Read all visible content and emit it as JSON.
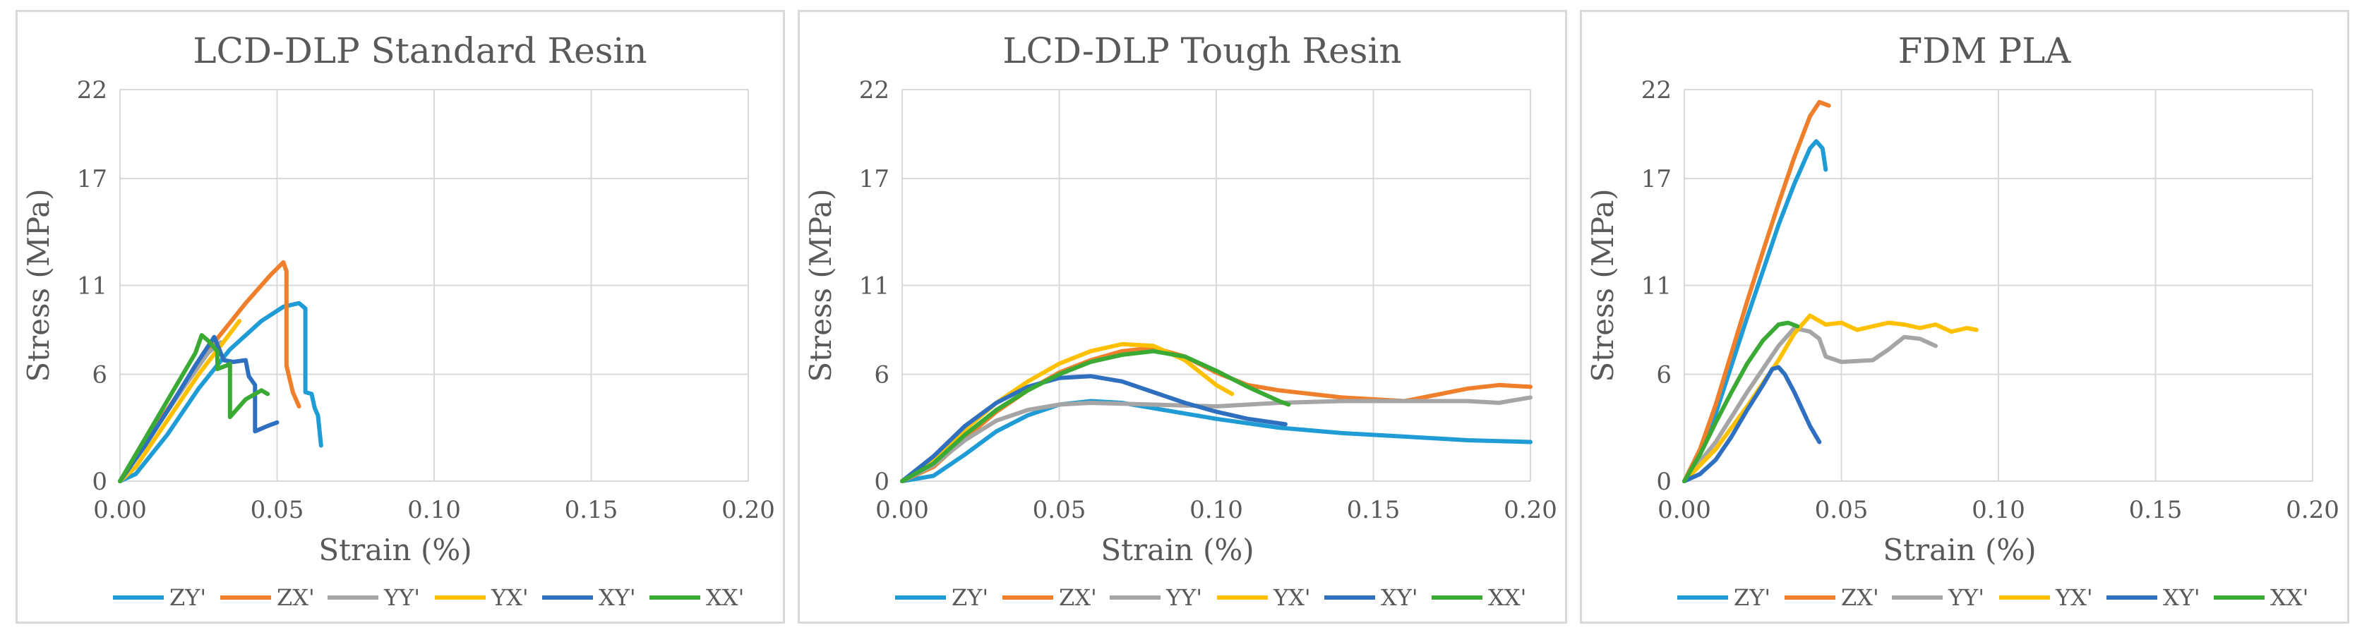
{
  "chart_data": [
    {
      "type": "line",
      "title": "LCD-DLP Standard Resin",
      "xlabel": "Strain (%)",
      "ylabel": "Stress (MPa)",
      "xlim": [
        0,
        0.2
      ],
      "ylim": [
        0,
        22
      ],
      "x_ticks": [
        "0.00",
        "0.05",
        "0.10",
        "0.15",
        "0.20"
      ],
      "y_ticks": [
        "0",
        "6",
        "11",
        "17",
        "22"
      ],
      "legend_position": "bottom",
      "series": [
        {
          "name": "ZY'",
          "color": "#1f9bd6",
          "points": [
            [
              0,
              0
            ],
            [
              0.005,
              0.4
            ],
            [
              0.015,
              2.6
            ],
            [
              0.025,
              5.2
            ],
            [
              0.035,
              7.4
            ],
            [
              0.045,
              9.0
            ],
            [
              0.052,
              9.8
            ],
            [
              0.057,
              10.0
            ],
            [
              0.059,
              9.7
            ],
            [
              0.059,
              5.0
            ],
            [
              0.061,
              4.9
            ],
            [
              0.062,
              4.1
            ],
            [
              0.063,
              3.7
            ],
            [
              0.064,
              2.0
            ]
          ]
        },
        {
          "name": "ZX'",
          "color": "#f07f2b",
          "points": [
            [
              0,
              0
            ],
            [
              0.01,
              2.7
            ],
            [
              0.02,
              5.3
            ],
            [
              0.03,
              7.8
            ],
            [
              0.04,
              10.0
            ],
            [
              0.048,
              11.6
            ],
            [
              0.052,
              12.3
            ],
            [
              0.053,
              11.8
            ],
            [
              0.053,
              6.5
            ],
            [
              0.055,
              5.0
            ],
            [
              0.057,
              4.2
            ]
          ]
        },
        {
          "name": "YY'",
          "color": "#a5a5a5",
          "points": [
            [
              0,
              0
            ],
            [
              0.01,
              2.6
            ],
            [
              0.02,
              5.2
            ],
            [
              0.028,
              7.2
            ],
            [
              0.032,
              7.8
            ]
          ]
        },
        {
          "name": "YX'",
          "color": "#ffc000",
          "points": [
            [
              0,
              0
            ],
            [
              0.005,
              0.8
            ],
            [
              0.015,
              3.4
            ],
            [
              0.025,
              6.0
            ],
            [
              0.032,
              7.6
            ],
            [
              0.038,
              9.0
            ]
          ]
        },
        {
          "name": "XY'",
          "color": "#2e6fbf",
          "points": [
            [
              0,
              0
            ],
            [
              0.008,
              2.0
            ],
            [
              0.016,
              4.2
            ],
            [
              0.024,
              6.5
            ],
            [
              0.03,
              8.1
            ],
            [
              0.033,
              6.8
            ],
            [
              0.036,
              6.7
            ],
            [
              0.04,
              6.8
            ],
            [
              0.041,
              5.9
            ],
            [
              0.043,
              5.4
            ],
            [
              0.043,
              2.8
            ],
            [
              0.047,
              3.1
            ],
            [
              0.05,
              3.3
            ]
          ]
        },
        {
          "name": "XX'",
          "color": "#3aaa35",
          "points": [
            [
              0,
              0
            ],
            [
              0.008,
              2.4
            ],
            [
              0.016,
              4.8
            ],
            [
              0.024,
              7.2
            ],
            [
              0.026,
              8.2
            ],
            [
              0.028,
              7.9
            ],
            [
              0.031,
              7.3
            ],
            [
              0.031,
              6.3
            ],
            [
              0.034,
              6.5
            ],
            [
              0.035,
              6.6
            ],
            [
              0.035,
              3.6
            ],
            [
              0.04,
              4.6
            ],
            [
              0.045,
              5.1
            ],
            [
              0.047,
              4.9
            ]
          ]
        }
      ]
    },
    {
      "type": "line",
      "title": "LCD-DLP Tough Resin",
      "xlabel": "Strain (%)",
      "ylabel": "Stress (MPa)",
      "xlim": [
        0,
        0.2
      ],
      "ylim": [
        0,
        22
      ],
      "x_ticks": [
        "0.00",
        "0.05",
        "0.10",
        "0.15",
        "0.20"
      ],
      "y_ticks": [
        "0",
        "6",
        "11",
        "17",
        "22"
      ],
      "legend_position": "bottom",
      "series": [
        {
          "name": "ZY'",
          "color": "#1f9bd6",
          "points": [
            [
              0,
              0
            ],
            [
              0.01,
              0.3
            ],
            [
              0.02,
              1.5
            ],
            [
              0.03,
              2.8
            ],
            [
              0.04,
              3.7
            ],
            [
              0.05,
              4.3
            ],
            [
              0.06,
              4.5
            ],
            [
              0.07,
              4.4
            ],
            [
              0.08,
              4.1
            ],
            [
              0.1,
              3.5
            ],
            [
              0.12,
              3.0
            ],
            [
              0.14,
              2.7
            ],
            [
              0.16,
              2.5
            ],
            [
              0.18,
              2.3
            ],
            [
              0.2,
              2.2
            ]
          ]
        },
        {
          "name": "ZX'",
          "color": "#f07f2b",
          "points": [
            [
              0,
              0
            ],
            [
              0.01,
              0.8
            ],
            [
              0.02,
              2.4
            ],
            [
              0.03,
              3.9
            ],
            [
              0.04,
              5.1
            ],
            [
              0.05,
              6.1
            ],
            [
              0.06,
              6.8
            ],
            [
              0.07,
              7.3
            ],
            [
              0.08,
              7.5
            ],
            [
              0.09,
              7.0
            ],
            [
              0.1,
              6.1
            ],
            [
              0.11,
              5.4
            ],
            [
              0.12,
              5.1
            ],
            [
              0.14,
              4.7
            ],
            [
              0.16,
              4.5
            ],
            [
              0.18,
              5.2
            ],
            [
              0.19,
              5.4
            ],
            [
              0.2,
              5.3
            ]
          ]
        },
        {
          "name": "YY'",
          "color": "#a5a5a5",
          "points": [
            [
              0,
              0
            ],
            [
              0.01,
              0.9
            ],
            [
              0.02,
              2.3
            ],
            [
              0.03,
              3.4
            ],
            [
              0.04,
              4.0
            ],
            [
              0.05,
              4.3
            ],
            [
              0.06,
              4.4
            ],
            [
              0.08,
              4.3
            ],
            [
              0.1,
              4.2
            ],
            [
              0.12,
              4.4
            ],
            [
              0.14,
              4.5
            ],
            [
              0.16,
              4.5
            ],
            [
              0.18,
              4.5
            ],
            [
              0.19,
              4.4
            ],
            [
              0.2,
              4.7
            ]
          ]
        },
        {
          "name": "YX'",
          "color": "#ffc000",
          "points": [
            [
              0,
              0
            ],
            [
              0.01,
              1.2
            ],
            [
              0.02,
              2.9
            ],
            [
              0.03,
              4.4
            ],
            [
              0.04,
              5.6
            ],
            [
              0.05,
              6.6
            ],
            [
              0.06,
              7.3
            ],
            [
              0.07,
              7.7
            ],
            [
              0.08,
              7.6
            ],
            [
              0.09,
              6.8
            ],
            [
              0.1,
              5.4
            ],
            [
              0.105,
              4.9
            ]
          ]
        },
        {
          "name": "XY'",
          "color": "#2e6fbf",
          "points": [
            [
              0,
              0
            ],
            [
              0.01,
              1.4
            ],
            [
              0.02,
              3.1
            ],
            [
              0.03,
              4.4
            ],
            [
              0.04,
              5.3
            ],
            [
              0.05,
              5.8
            ],
            [
              0.06,
              5.9
            ],
            [
              0.07,
              5.6
            ],
            [
              0.08,
              5.0
            ],
            [
              0.09,
              4.4
            ],
            [
              0.1,
              3.9
            ],
            [
              0.11,
              3.5
            ],
            [
              0.122,
              3.2
            ]
          ]
        },
        {
          "name": "XX'",
          "color": "#3aaa35",
          "points": [
            [
              0,
              0
            ],
            [
              0.01,
              1.0
            ],
            [
              0.02,
              2.6
            ],
            [
              0.03,
              4.0
            ],
            [
              0.04,
              5.1
            ],
            [
              0.05,
              6.0
            ],
            [
              0.06,
              6.7
            ],
            [
              0.07,
              7.1
            ],
            [
              0.08,
              7.3
            ],
            [
              0.09,
              7.0
            ],
            [
              0.1,
              6.2
            ],
            [
              0.11,
              5.3
            ],
            [
              0.12,
              4.5
            ],
            [
              0.123,
              4.3
            ]
          ]
        }
      ]
    },
    {
      "type": "line",
      "title": "FDM PLA",
      "xlabel": "Strain (%)",
      "ylabel": "Stress (MPa)",
      "xlim": [
        0,
        0.2
      ],
      "ylim": [
        0,
        22
      ],
      "x_ticks": [
        "0.00",
        "0.05",
        "0.10",
        "0.15",
        "0.20"
      ],
      "y_ticks": [
        "0",
        "6",
        "11",
        "17",
        "22"
      ],
      "legend_position": "bottom",
      "series": [
        {
          "name": "ZY'",
          "color": "#1f9bd6",
          "points": [
            [
              0,
              0
            ],
            [
              0.005,
              1.5
            ],
            [
              0.01,
              3.8
            ],
            [
              0.015,
              6.5
            ],
            [
              0.02,
              9.2
            ],
            [
              0.025,
              11.8
            ],
            [
              0.03,
              14.4
            ],
            [
              0.035,
              16.7
            ],
            [
              0.04,
              18.7
            ],
            [
              0.042,
              19.1
            ],
            [
              0.044,
              18.7
            ],
            [
              0.045,
              17.5
            ]
          ]
        },
        {
          "name": "ZX'",
          "color": "#f07f2b",
          "points": [
            [
              0,
              0
            ],
            [
              0.005,
              1.8
            ],
            [
              0.01,
              4.3
            ],
            [
              0.015,
              7.2
            ],
            [
              0.02,
              10.1
            ],
            [
              0.025,
              12.9
            ],
            [
              0.03,
              15.6
            ],
            [
              0.035,
              18.2
            ],
            [
              0.04,
              20.5
            ],
            [
              0.043,
              21.3
            ],
            [
              0.046,
              21.1
            ]
          ]
        },
        {
          "name": "YY'",
          "color": "#a5a5a5",
          "points": [
            [
              0,
              0
            ],
            [
              0.01,
              2.2
            ],
            [
              0.02,
              5.0
            ],
            [
              0.03,
              7.6
            ],
            [
              0.035,
              8.6
            ],
            [
              0.04,
              8.4
            ],
            [
              0.043,
              8.0
            ],
            [
              0.045,
              7.0
            ],
            [
              0.05,
              6.7
            ],
            [
              0.06,
              6.8
            ],
            [
              0.065,
              7.4
            ],
            [
              0.07,
              8.1
            ],
            [
              0.075,
              8.0
            ],
            [
              0.08,
              7.6
            ]
          ]
        },
        {
          "name": "YX'",
          "color": "#ffc000",
          "points": [
            [
              0,
              0
            ],
            [
              0.01,
              1.8
            ],
            [
              0.02,
              4.2
            ],
            [
              0.03,
              6.8
            ],
            [
              0.035,
              8.3
            ],
            [
              0.04,
              9.3
            ],
            [
              0.045,
              8.8
            ],
            [
              0.05,
              8.9
            ],
            [
              0.055,
              8.5
            ],
            [
              0.06,
              8.7
            ],
            [
              0.065,
              8.9
            ],
            [
              0.07,
              8.8
            ],
            [
              0.075,
              8.6
            ],
            [
              0.08,
              8.8
            ],
            [
              0.085,
              8.4
            ],
            [
              0.09,
              8.6
            ],
            [
              0.093,
              8.5
            ]
          ]
        },
        {
          "name": "XY'",
          "color": "#2e6fbf",
          "points": [
            [
              0,
              0
            ],
            [
              0.005,
              0.4
            ],
            [
              0.01,
              1.2
            ],
            [
              0.015,
              2.5
            ],
            [
              0.02,
              4.0
            ],
            [
              0.025,
              5.4
            ],
            [
              0.028,
              6.3
            ],
            [
              0.03,
              6.4
            ],
            [
              0.032,
              6.0
            ],
            [
              0.035,
              5.0
            ],
            [
              0.04,
              3.1
            ],
            [
              0.043,
              2.2
            ]
          ]
        },
        {
          "name": "XX'",
          "color": "#3aaa35",
          "points": [
            [
              0,
              0
            ],
            [
              0.005,
              1.5
            ],
            [
              0.01,
              3.3
            ],
            [
              0.015,
              5.0
            ],
            [
              0.02,
              6.6
            ],
            [
              0.025,
              7.9
            ],
            [
              0.03,
              8.8
            ],
            [
              0.033,
              8.9
            ],
            [
              0.036,
              8.7
            ]
          ]
        }
      ]
    }
  ]
}
